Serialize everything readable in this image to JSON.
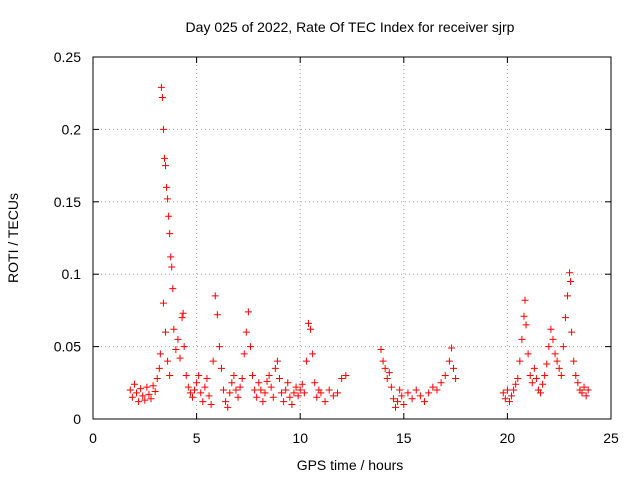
{
  "chart_data": {
    "type": "scatter",
    "title": "Day 025 of 2022, Rate Of TEC Index for receiver sjrp",
    "xlabel": "GPS time / hours",
    "ylabel": "ROTI / TECUs",
    "xlim": [
      0,
      25
    ],
    "ylim": [
      0,
      0.25
    ],
    "xticks": [
      0,
      5,
      10,
      15,
      20,
      25
    ],
    "yticks": [
      0,
      0.05,
      0.1,
      0.15,
      0.2,
      0.25
    ],
    "xtick_labels": [
      "0",
      "5",
      "10",
      "15",
      "20",
      "25"
    ],
    "ytick_labels": [
      "0",
      "0.05",
      "0.1",
      "0.15",
      "0.2",
      "0.25"
    ],
    "grid": true,
    "marker": "+",
    "color": "#ff0000",
    "series": [
      {
        "name": "ROTI",
        "points": [
          [
            1.8,
            0.02
          ],
          [
            1.9,
            0.015
          ],
          [
            2.0,
            0.024
          ],
          [
            2.1,
            0.018
          ],
          [
            2.2,
            0.012
          ],
          [
            2.3,
            0.021
          ],
          [
            2.4,
            0.016
          ],
          [
            2.5,
            0.013
          ],
          [
            2.6,
            0.022
          ],
          [
            2.7,
            0.017
          ],
          [
            2.8,
            0.014
          ],
          [
            2.9,
            0.023
          ],
          [
            3.0,
            0.019
          ],
          [
            3.1,
            0.028
          ],
          [
            3.2,
            0.035
          ],
          [
            3.25,
            0.045
          ],
          [
            3.3,
            0.229
          ],
          [
            3.35,
            0.222
          ],
          [
            3.4,
            0.2
          ],
          [
            3.45,
            0.18
          ],
          [
            3.5,
            0.175
          ],
          [
            3.55,
            0.16
          ],
          [
            3.6,
            0.152
          ],
          [
            3.65,
            0.14
          ],
          [
            3.7,
            0.128
          ],
          [
            3.75,
            0.112
          ],
          [
            3.8,
            0.105
          ],
          [
            3.85,
            0.09
          ],
          [
            3.4,
            0.08
          ],
          [
            3.5,
            0.06
          ],
          [
            3.6,
            0.04
          ],
          [
            3.7,
            0.03
          ],
          [
            3.9,
            0.062
          ],
          [
            4.0,
            0.048
          ],
          [
            4.1,
            0.055
          ],
          [
            4.2,
            0.042
          ],
          [
            4.3,
            0.07
          ],
          [
            4.35,
            0.073
          ],
          [
            4.4,
            0.05
          ],
          [
            4.5,
            0.03
          ],
          [
            4.6,
            0.022
          ],
          [
            4.7,
            0.018
          ],
          [
            4.8,
            0.015
          ],
          [
            4.9,
            0.02
          ],
          [
            5.0,
            0.025
          ],
          [
            5.1,
            0.03
          ],
          [
            5.2,
            0.018
          ],
          [
            5.3,
            0.012
          ],
          [
            5.4,
            0.022
          ],
          [
            5.5,
            0.028
          ],
          [
            5.6,
            0.016
          ],
          [
            5.7,
            0.01
          ],
          [
            5.8,
            0.04
          ],
          [
            5.9,
            0.085
          ],
          [
            6.0,
            0.072
          ],
          [
            6.1,
            0.05
          ],
          [
            6.2,
            0.035
          ],
          [
            6.3,
            0.02
          ],
          [
            6.4,
            0.012
          ],
          [
            6.5,
            0.008
          ],
          [
            6.6,
            0.018
          ],
          [
            6.7,
            0.025
          ],
          [
            6.8,
            0.03
          ],
          [
            6.9,
            0.02
          ],
          [
            7.0,
            0.015
          ],
          [
            7.1,
            0.022
          ],
          [
            7.2,
            0.028
          ],
          [
            7.3,
            0.045
          ],
          [
            7.4,
            0.06
          ],
          [
            7.5,
            0.074
          ],
          [
            7.6,
            0.05
          ],
          [
            7.7,
            0.03
          ],
          [
            7.8,
            0.02
          ],
          [
            7.9,
            0.015
          ],
          [
            8.0,
            0.025
          ],
          [
            8.1,
            0.02
          ],
          [
            8.2,
            0.012
          ],
          [
            8.3,
            0.018
          ],
          [
            8.4,
            0.026
          ],
          [
            8.5,
            0.03
          ],
          [
            8.6,
            0.022
          ],
          [
            8.7,
            0.015
          ],
          [
            8.8,
            0.035
          ],
          [
            8.9,
            0.04
          ],
          [
            9.0,
            0.028
          ],
          [
            9.1,
            0.018
          ],
          [
            9.2,
            0.012
          ],
          [
            9.3,
            0.02
          ],
          [
            9.4,
            0.025
          ],
          [
            9.5,
            0.015
          ],
          [
            9.6,
            0.01
          ],
          [
            9.7,
            0.018
          ],
          [
            9.8,
            0.022
          ],
          [
            9.9,
            0.016
          ],
          [
            10.0,
            0.02
          ],
          [
            10.1,
            0.024
          ],
          [
            10.2,
            0.018
          ],
          [
            10.3,
            0.04
          ],
          [
            10.4,
            0.066
          ],
          [
            10.5,
            0.062
          ],
          [
            10.6,
            0.045
          ],
          [
            10.7,
            0.025
          ],
          [
            10.8,
            0.015
          ],
          [
            10.9,
            0.02
          ],
          [
            11.0,
            0.018
          ],
          [
            11.2,
            0.012
          ],
          [
            11.4,
            0.02
          ],
          [
            11.6,
            0.016
          ],
          [
            11.8,
            0.018
          ],
          [
            12.0,
            0.028
          ],
          [
            12.2,
            0.03
          ],
          [
            13.9,
            0.048
          ],
          [
            14.0,
            0.04
          ],
          [
            14.1,
            0.035
          ],
          [
            14.2,
            0.028
          ],
          [
            14.3,
            0.032
          ],
          [
            14.4,
            0.022
          ],
          [
            14.5,
            0.014
          ],
          [
            14.6,
            0.008
          ],
          [
            14.7,
            0.012
          ],
          [
            14.8,
            0.02
          ],
          [
            14.9,
            0.016
          ],
          [
            15.0,
            0.01
          ],
          [
            15.2,
            0.018
          ],
          [
            15.4,
            0.014
          ],
          [
            15.6,
            0.02
          ],
          [
            15.8,
            0.016
          ],
          [
            16.0,
            0.012
          ],
          [
            16.2,
            0.018
          ],
          [
            16.4,
            0.022
          ],
          [
            16.6,
            0.02
          ],
          [
            16.8,
            0.025
          ],
          [
            17.0,
            0.03
          ],
          [
            17.2,
            0.04
          ],
          [
            17.3,
            0.049
          ],
          [
            17.4,
            0.035
          ],
          [
            17.5,
            0.028
          ],
          [
            19.8,
            0.018
          ],
          [
            19.9,
            0.014
          ],
          [
            20.0,
            0.02
          ],
          [
            20.1,
            0.012
          ],
          [
            20.2,
            0.016
          ],
          [
            20.3,
            0.02
          ],
          [
            20.4,
            0.024
          ],
          [
            20.5,
            0.028
          ],
          [
            20.6,
            0.04
          ],
          [
            20.7,
            0.055
          ],
          [
            20.8,
            0.071
          ],
          [
            20.85,
            0.082
          ],
          [
            20.9,
            0.065
          ],
          [
            21.0,
            0.045
          ],
          [
            21.1,
            0.03
          ],
          [
            21.2,
            0.025
          ],
          [
            21.3,
            0.035
          ],
          [
            21.4,
            0.028
          ],
          [
            21.5,
            0.02
          ],
          [
            21.6,
            0.018
          ],
          [
            21.7,
            0.024
          ],
          [
            21.8,
            0.03
          ],
          [
            21.9,
            0.038
          ],
          [
            22.0,
            0.05
          ],
          [
            22.1,
            0.062
          ],
          [
            22.2,
            0.055
          ],
          [
            22.3,
            0.045
          ],
          [
            22.4,
            0.04
          ],
          [
            22.5,
            0.035
          ],
          [
            22.6,
            0.03
          ],
          [
            22.7,
            0.05
          ],
          [
            22.8,
            0.07
          ],
          [
            22.9,
            0.085
          ],
          [
            23.0,
            0.101
          ],
          [
            23.05,
            0.095
          ],
          [
            23.1,
            0.06
          ],
          [
            23.2,
            0.04
          ],
          [
            23.3,
            0.03
          ],
          [
            23.4,
            0.025
          ],
          [
            23.5,
            0.02
          ],
          [
            23.6,
            0.018
          ],
          [
            23.7,
            0.022
          ],
          [
            23.8,
            0.016
          ],
          [
            23.9,
            0.02
          ]
        ]
      }
    ]
  }
}
